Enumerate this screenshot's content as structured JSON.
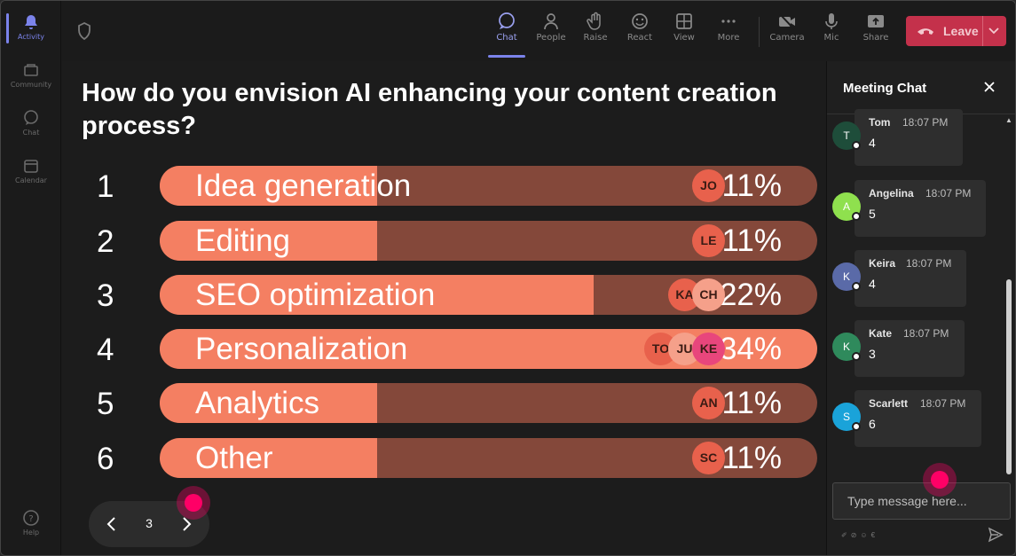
{
  "rail": {
    "items": [
      {
        "label": "Activity",
        "icon": "bell-icon",
        "active": true
      },
      {
        "label": "Community",
        "icon": "community-icon"
      },
      {
        "label": "Chat",
        "icon": "chat-icon"
      },
      {
        "label": "Calendar",
        "icon": "calendar-icon"
      }
    ],
    "help": {
      "label": "Help",
      "icon": "help-icon"
    }
  },
  "toolbar": {
    "items": [
      {
        "label": "Chat",
        "icon": "chat-icon",
        "active": true
      },
      {
        "label": "People",
        "icon": "people-icon"
      },
      {
        "label": "Raise",
        "icon": "raise-hand-icon"
      },
      {
        "label": "React",
        "icon": "react-icon"
      },
      {
        "label": "View",
        "icon": "view-icon"
      },
      {
        "label": "More",
        "icon": "more-icon"
      },
      {
        "label": "Camera",
        "icon": "camera-off-icon"
      },
      {
        "label": "Mic",
        "icon": "mic-icon"
      },
      {
        "label": "Share",
        "icon": "share-icon"
      }
    ],
    "leave_label": "Leave",
    "leave_color": "#c4314b"
  },
  "poll": {
    "question": "How do you envision AI enhancing your content creation process?",
    "options": [
      {
        "number": "1",
        "label": "Idea generation",
        "percent": 11,
        "percent_label": "11%",
        "voters": [
          {
            "initials": "JO",
            "color": "#e8614c"
          }
        ]
      },
      {
        "number": "2",
        "label": "Editing",
        "percent": 11,
        "percent_label": "11%",
        "voters": [
          {
            "initials": "LE",
            "color": "#e8614c"
          }
        ]
      },
      {
        "number": "3",
        "label": "SEO optimization",
        "percent": 22,
        "percent_label": "22%",
        "voters": [
          {
            "initials": "KA",
            "color": "#e8614c"
          },
          {
            "initials": "CH",
            "color": "#f5a08a"
          }
        ]
      },
      {
        "number": "4",
        "label": "Personalization",
        "percent": 34,
        "percent_label": "34%",
        "voters": [
          {
            "initials": "TO",
            "color": "#e8614c"
          },
          {
            "initials": "JU",
            "color": "#f5a08a"
          },
          {
            "initials": "KE",
            "color": "#e8467c"
          }
        ]
      },
      {
        "number": "5",
        "label": "Analytics",
        "percent": 11,
        "percent_label": "11%",
        "voters": [
          {
            "initials": "AN",
            "color": "#e8614c"
          }
        ]
      },
      {
        "number": "6",
        "label": "Other",
        "percent": 11,
        "percent_label": "11%",
        "voters": [
          {
            "initials": "SC",
            "color": "#e8614c"
          }
        ]
      }
    ],
    "colors": {
      "fill": "#f47f62",
      "track": "#84483a"
    }
  },
  "pager": {
    "page": "3"
  },
  "chat": {
    "title": "Meeting Chat",
    "messages": [
      {
        "initial": "T",
        "name": "Tom",
        "time": "18:07 PM",
        "text": "4",
        "color": "#1e4d3a"
      },
      {
        "initial": "A",
        "name": "Angelina",
        "time": "18:07 PM",
        "text": "5",
        "color": "#8fe04e"
      },
      {
        "initial": "K",
        "name": "Keira",
        "time": "18:07 PM",
        "text": "4",
        "color": "#5a6aa8"
      },
      {
        "initial": "K",
        "name": "Kate",
        "time": "18:07 PM",
        "text": "3",
        "color": "#2f8a5c"
      },
      {
        "initial": "S",
        "name": "Scarlett",
        "time": "18:07 PM",
        "text": "6",
        "color": "#1aa3d9"
      }
    ],
    "input_placeholder": "Type message here..."
  }
}
